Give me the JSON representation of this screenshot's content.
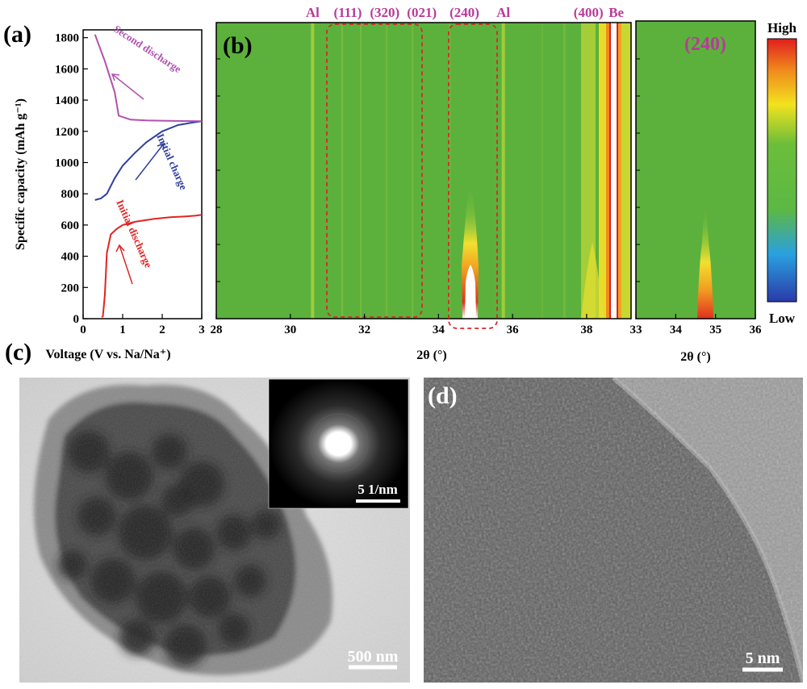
{
  "panels": {
    "a": "(a)",
    "b": "(b)",
    "c": "(c)",
    "d": "(d)"
  },
  "chart_data": [
    {
      "type": "line",
      "panel": "(a)",
      "xlabel": "Voltage (V vs. Na/Na⁺)",
      "ylabel": "Specific capacity (mAh g⁻¹)",
      "xlim": [
        0,
        3
      ],
      "ylim": [
        0,
        1850
      ],
      "xticks": [
        "0",
        "1",
        "2",
        "3"
      ],
      "yticks": [
        "0",
        "200",
        "400",
        "600",
        "800",
        "1000",
        "1200",
        "1400",
        "1600",
        "1800"
      ],
      "series": [
        {
          "name": "Initial discharge",
          "color": "#e02424",
          "points": [
            [
              0.47,
              10
            ],
            [
              0.5,
              15
            ],
            [
              0.55,
              150
            ],
            [
              0.6,
              420
            ],
            [
              0.7,
              540
            ],
            [
              0.85,
              575
            ],
            [
              1.0,
              600
            ],
            [
              1.3,
              620
            ],
            [
              1.8,
              640
            ],
            [
              2.2,
              650
            ],
            [
              2.6,
              655
            ],
            [
              2.85,
              660
            ],
            [
              3.0,
              665
            ]
          ]
        },
        {
          "name": "Initial charge",
          "color": "#3040a0",
          "points": [
            [
              0.3,
              760
            ],
            [
              0.45,
              770
            ],
            [
              0.6,
              800
            ],
            [
              0.8,
              900
            ],
            [
              1.0,
              980
            ],
            [
              1.3,
              1060
            ],
            [
              1.6,
              1130
            ],
            [
              2.0,
              1200
            ],
            [
              2.4,
              1240
            ],
            [
              2.8,
              1258
            ],
            [
              3.0,
              1265
            ]
          ]
        },
        {
          "name": "Second discharge",
          "color": "#b050b0",
          "points": [
            [
              0.3,
              1820
            ],
            [
              0.55,
              1650
            ],
            [
              0.8,
              1450
            ],
            [
              0.9,
              1300
            ],
            [
              1.2,
              1275
            ],
            [
              1.6,
              1270
            ],
            [
              2.0,
              1268
            ],
            [
              2.5,
              1266
            ],
            [
              3.0,
              1265
            ]
          ]
        }
      ],
      "annotations": [
        "Second discharge",
        "Initial charge",
        "Initial discharge"
      ]
    },
    {
      "type": "heatmap",
      "panel": "(b)",
      "xlabel": "2θ (°)",
      "xlim": [
        28,
        39.2
      ],
      "xticks": [
        "28",
        "30",
        "32",
        "34",
        "36",
        "38"
      ],
      "peak_labels": [
        {
          "label": "Al",
          "x": 30.6
        },
        {
          "label": "(111)",
          "x": 31.55
        },
        {
          "label": "(320)",
          "x": 32.55
        },
        {
          "label": "(021)",
          "x": 33.55
        },
        {
          "label": "(240)",
          "x": 34.7
        },
        {
          "label": "Al",
          "x": 35.75
        },
        {
          "label": "(400)",
          "x": 38.05
        },
        {
          "label": "Be",
          "x": 38.8
        }
      ],
      "highlighted_ranges": [
        [
          31.0,
          33.6
        ],
        [
          34.2,
          35.5
        ]
      ],
      "hot_spots": [
        {
          "x": 34.75,
          "y_fraction_from_bottom": 0.2,
          "intensity": "high"
        },
        {
          "x": 38.75,
          "y_fraction_from_bottom": 0.5,
          "intensity": "high"
        }
      ]
    },
    {
      "type": "heatmap",
      "panel": "(240)",
      "title": "(240)",
      "xlabel": "2θ (°)",
      "xlim": [
        33,
        36
      ],
      "xticks": [
        "33",
        "34",
        "35",
        "36"
      ],
      "colorbar": {
        "high": "High",
        "low": "Low"
      }
    }
  ],
  "images": {
    "c": {
      "scale_bar": "500 nm",
      "inset_scale_bar": "5 1/nm"
    },
    "d": {
      "scale_bar": "5 nm"
    }
  },
  "colors": {
    "field_green": "#5cb13c",
    "label_magenta": "#b83a9a",
    "dash_red": "#d8262b"
  }
}
